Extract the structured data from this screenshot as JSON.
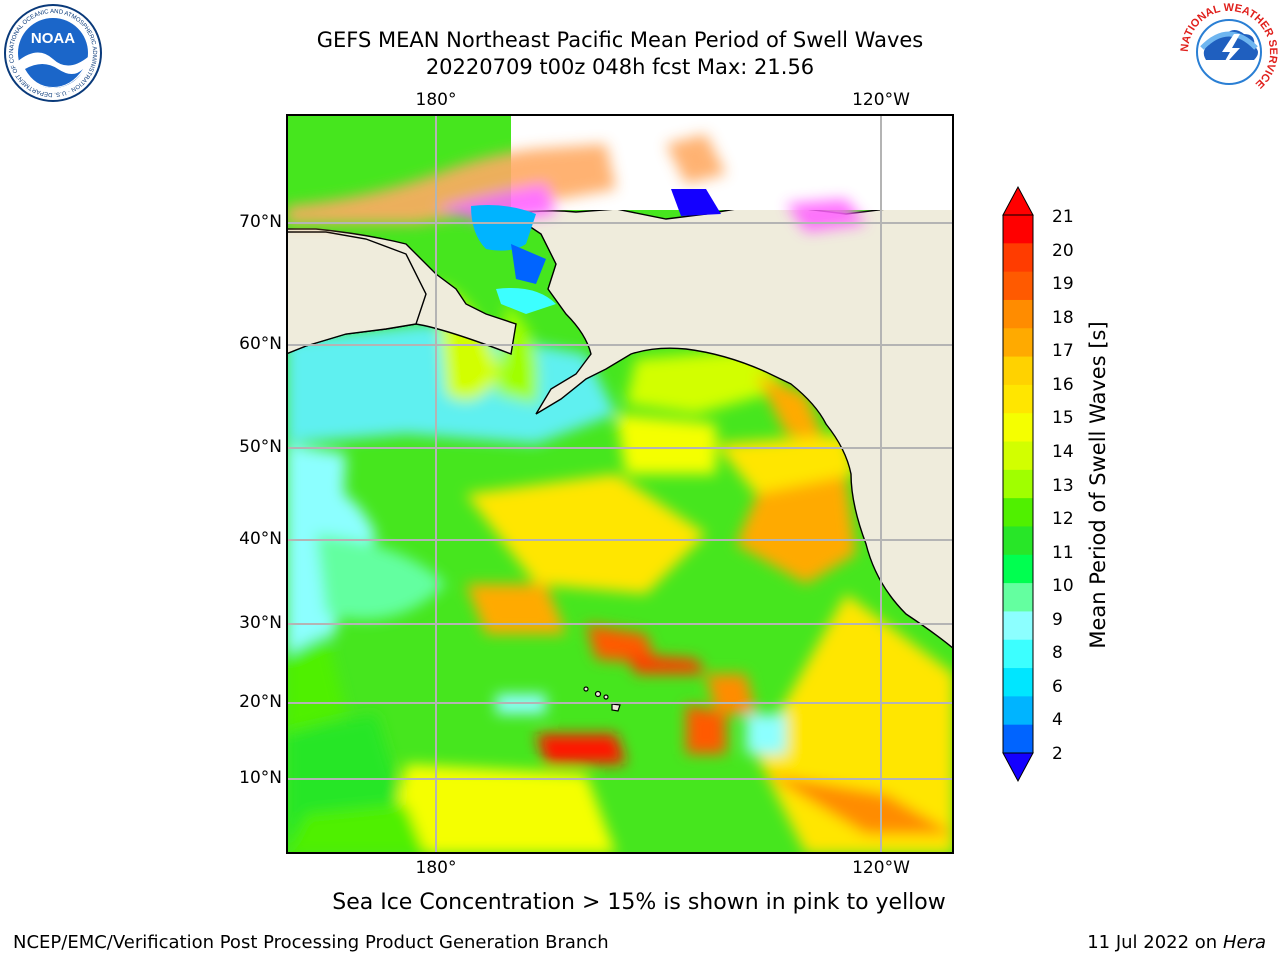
{
  "title_line1": "GEFS MEAN Northeast Pacific Mean Period of Swell Waves",
  "title_line2": "20220709 t00z 048h fcst   Max: 21.56",
  "top_axis": [
    "180°",
    "120°W"
  ],
  "bottom_axis": [
    "180°",
    "120°W"
  ],
  "lat_labels": [
    "70°N",
    "60°N",
    "50°N",
    "40°N",
    "30°N",
    "20°N",
    "10°N"
  ],
  "colorbar": {
    "label": "Mean Period of Swell Waves [s]",
    "ticks": [
      "21",
      "20",
      "19",
      "18",
      "17",
      "16",
      "15",
      "14",
      "13",
      "12",
      "11",
      "10",
      "9",
      "8",
      "6",
      "4",
      "2"
    ],
    "colors": [
      "#ff0000",
      "#ff3c00",
      "#ff5a00",
      "#ff8c00",
      "#ffaa00",
      "#ffd200",
      "#ffe600",
      "#f5ff00",
      "#d2ff00",
      "#a0ff00",
      "#50f000",
      "#28e628",
      "#00ff50",
      "#64ffa0",
      "#8cffff",
      "#3cffff",
      "#00e6ff",
      "#00b4ff",
      "#0064ff"
    ],
    "over_color": "#ff0000",
    "under_color": "#1400ff"
  },
  "ice_note": "Sea Ice Concentration > 15% is shown in pink to yellow",
  "footer_left": "NCEP/EMC/Verification Post Processing Product Generation Branch",
  "footer_right_date": "11 Jul 2022 on ",
  "footer_right_host": "Hera",
  "logos": {
    "noaa": "NOAA",
    "noaa_ring": "NATIONAL OCEANIC AND ATMOSPHERIC ADMINISTRATION · U.S. DEPARTMENT OF COMMERCE",
    "nws_ring": "NATIONAL WEATHER SERVICE"
  },
  "land_color": "#efecdc",
  "grid_color": "#b4b4b4"
}
